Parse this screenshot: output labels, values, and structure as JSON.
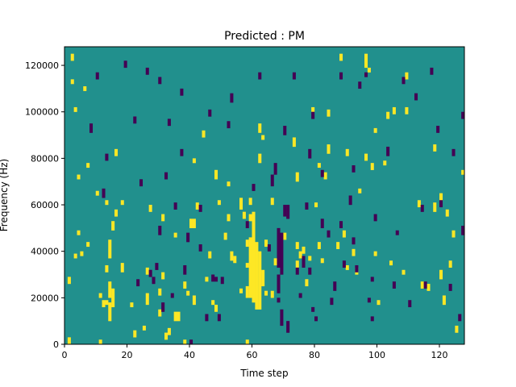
{
  "chart_data": {
    "type": "heatmap",
    "title": "Predicted : PM",
    "xlabel": "Time step",
    "ylabel": "Frequency (Hz)",
    "xlim": [
      0,
      128
    ],
    "ylim": [
      0,
      128000
    ],
    "x_ticks": [
      0,
      20,
      40,
      60,
      80,
      100,
      120
    ],
    "y_ticks": [
      0,
      20000,
      40000,
      60000,
      80000,
      100000,
      120000
    ],
    "n_time_steps": 128,
    "n_freq_bins": 128,
    "colors": {
      "background": "#21908d",
      "high": "#fde725",
      "low": "#440154"
    },
    "high_segments": [
      [
        1,
        0,
        3
      ],
      [
        1,
        26,
        29
      ],
      [
        2,
        112,
        114
      ],
      [
        2,
        122,
        125
      ],
      [
        3,
        37,
        39
      ],
      [
        3,
        100,
        102
      ],
      [
        4,
        47,
        49
      ],
      [
        4,
        71,
        73
      ],
      [
        5,
        38,
        40
      ],
      [
        6,
        109,
        111
      ],
      [
        7,
        42,
        44
      ],
      [
        7,
        76,
        78
      ],
      [
        10,
        64,
        66
      ],
      [
        11,
        0,
        2
      ],
      [
        11,
        20,
        22
      ],
      [
        12,
        16,
        19
      ],
      [
        13,
        17,
        19
      ],
      [
        13,
        31,
        34
      ],
      [
        13,
        60,
        62
      ],
      [
        14,
        10,
        18
      ],
      [
        14,
        20,
        27
      ],
      [
        14,
        37,
        45
      ],
      [
        15,
        16,
        24
      ],
      [
        15,
        49,
        53
      ],
      [
        16,
        55,
        58
      ],
      [
        16,
        81,
        84
      ],
      [
        18,
        31,
        35
      ],
      [
        18,
        60,
        62
      ],
      [
        21,
        16,
        18
      ],
      [
        22,
        3,
        6
      ],
      [
        25,
        6,
        8
      ],
      [
        26,
        17,
        22
      ],
      [
        26,
        30,
        33
      ],
      [
        27,
        57,
        60
      ],
      [
        30,
        12,
        15
      ],
      [
        30,
        21,
        24
      ],
      [
        31,
        28,
        31
      ],
      [
        31,
        53,
        56
      ],
      [
        32,
        2,
        5
      ],
      [
        33,
        4,
        7
      ],
      [
        35,
        10,
        14
      ],
      [
        35,
        46,
        48
      ],
      [
        36,
        10,
        14
      ],
      [
        38,
        0,
        2
      ],
      [
        38,
        24,
        27
      ],
      [
        39,
        21,
        23
      ],
      [
        40,
        50,
        54
      ],
      [
        41,
        50,
        54
      ],
      [
        41,
        17,
        21
      ],
      [
        41,
        78,
        80
      ],
      [
        42,
        58,
        61
      ],
      [
        44,
        89,
        92
      ],
      [
        45,
        27,
        29
      ],
      [
        46,
        37,
        40
      ],
      [
        47,
        17,
        19
      ],
      [
        48,
        14,
        17
      ],
      [
        48,
        71,
        75
      ],
      [
        49,
        60,
        62
      ],
      [
        51,
        45,
        48
      ],
      [
        52,
        53,
        56
      ],
      [
        52,
        68,
        70
      ],
      [
        53,
        36,
        40
      ],
      [
        54,
        35,
        38
      ],
      [
        56,
        58,
        63
      ],
      [
        56,
        22,
        24
      ],
      [
        57,
        54,
        57
      ],
      [
        58,
        0,
        2
      ],
      [
        58,
        20,
        25
      ],
      [
        58,
        33,
        35
      ],
      [
        58,
        42,
        45
      ],
      [
        59,
        20,
        46
      ],
      [
        59,
        53,
        56
      ],
      [
        59,
        60,
        63
      ],
      [
        60,
        18,
        57
      ],
      [
        61,
        15,
        44
      ],
      [
        62,
        15,
        40
      ],
      [
        62,
        78,
        82
      ],
      [
        62,
        91,
        95
      ],
      [
        63,
        25,
        32
      ],
      [
        63,
        88,
        90
      ],
      [
        64,
        21,
        23
      ],
      [
        64,
        42,
        45
      ],
      [
        66,
        20,
        23
      ],
      [
        66,
        60,
        63
      ],
      [
        67,
        34,
        37
      ],
      [
        70,
        45,
        48
      ],
      [
        73,
        85,
        89
      ],
      [
        74,
        33,
        36
      ],
      [
        74,
        41,
        44
      ],
      [
        74,
        70,
        74
      ],
      [
        75,
        37,
        40
      ],
      [
        76,
        39,
        42
      ],
      [
        77,
        25,
        28
      ],
      [
        78,
        36,
        38
      ],
      [
        79,
        100,
        102
      ],
      [
        80,
        59,
        61
      ],
      [
        81,
        41,
        44
      ],
      [
        81,
        76,
        78
      ],
      [
        82,
        35,
        37
      ],
      [
        83,
        71,
        74
      ],
      [
        84,
        82,
        86
      ],
      [
        84,
        98,
        101
      ],
      [
        87,
        41,
        44
      ],
      [
        89,
        46,
        49
      ],
      [
        90,
        32,
        34
      ],
      [
        90,
        81,
        84
      ],
      [
        92,
        38,
        41
      ],
      [
        93,
        30,
        33
      ],
      [
        94,
        65,
        67
      ],
      [
        96,
        79,
        82
      ],
      [
        98,
        75,
        78
      ],
      [
        99,
        38,
        40
      ],
      [
        99,
        91,
        93
      ],
      [
        100,
        17,
        19
      ],
      [
        102,
        77,
        79
      ],
      [
        103,
        97,
        100
      ],
      [
        104,
        34,
        36
      ],
      [
        108,
        30,
        32
      ],
      [
        109,
        114,
        117
      ],
      [
        109,
        99,
        102
      ],
      [
        113,
        59,
        62
      ],
      [
        116,
        23,
        26
      ],
      [
        118,
        57,
        61
      ],
      [
        120,
        28,
        32
      ],
      [
        120,
        62,
        65
      ],
      [
        121,
        17,
        21
      ],
      [
        122,
        55,
        58
      ],
      [
        123,
        33,
        36
      ],
      [
        124,
        46,
        49
      ],
      [
        125,
        5,
        8
      ],
      [
        127,
        73,
        75
      ],
      [
        88,
        122,
        125
      ],
      [
        96,
        119,
        125
      ],
      [
        97,
        117,
        119
      ],
      [
        105,
        99,
        102
      ],
      [
        114,
        24,
        27
      ],
      [
        118,
        83,
        86
      ]
    ],
    "low_segments": [
      [
        8,
        91,
        95
      ],
      [
        10,
        114,
        117
      ],
      [
        12,
        63,
        67
      ],
      [
        13,
        79,
        82
      ],
      [
        19,
        119,
        122
      ],
      [
        22,
        95,
        98
      ],
      [
        23,
        25,
        28
      ],
      [
        24,
        68,
        71
      ],
      [
        26,
        116,
        119
      ],
      [
        27,
        29,
        32
      ],
      [
        28,
        26,
        29
      ],
      [
        29,
        32,
        35
      ],
      [
        30,
        112,
        115
      ],
      [
        30,
        47,
        51
      ],
      [
        31,
        14,
        18
      ],
      [
        32,
        71,
        74
      ],
      [
        33,
        94,
        97
      ],
      [
        34,
        20,
        22
      ],
      [
        35,
        58,
        61
      ],
      [
        37,
        81,
        84
      ],
      [
        37,
        107,
        110
      ],
      [
        38,
        30,
        34
      ],
      [
        39,
        44,
        48
      ],
      [
        40,
        0,
        2
      ],
      [
        43,
        40,
        43
      ],
      [
        43,
        57,
        60
      ],
      [
        45,
        10,
        13
      ],
      [
        46,
        98,
        101
      ],
      [
        47,
        27,
        30
      ],
      [
        48,
        27,
        29
      ],
      [
        49,
        10,
        13
      ],
      [
        50,
        26,
        29
      ],
      [
        52,
        93,
        96
      ],
      [
        53,
        104,
        108
      ],
      [
        58,
        50,
        53
      ],
      [
        60,
        66,
        69
      ],
      [
        62,
        114,
        117
      ],
      [
        67,
        73,
        78
      ],
      [
        68,
        18,
        20
      ],
      [
        68,
        22,
        30
      ],
      [
        68,
        33,
        50
      ],
      [
        69,
        30,
        48
      ],
      [
        69,
        8,
        15
      ],
      [
        70,
        55,
        60
      ],
      [
        70,
        90,
        94
      ],
      [
        71,
        5,
        10
      ],
      [
        71,
        54,
        60
      ],
      [
        73,
        114,
        117
      ],
      [
        74,
        30,
        33
      ],
      [
        75,
        20,
        22
      ],
      [
        76,
        33,
        38
      ],
      [
        77,
        58,
        61
      ],
      [
        78,
        30,
        33
      ],
      [
        78,
        80,
        84
      ],
      [
        79,
        14,
        16
      ],
      [
        80,
        10,
        12
      ],
      [
        82,
        72,
        75
      ],
      [
        82,
        50,
        54
      ],
      [
        84,
        46,
        49
      ],
      [
        85,
        17,
        20
      ],
      [
        86,
        23,
        27
      ],
      [
        88,
        50,
        53
      ],
      [
        88,
        114,
        117
      ],
      [
        89,
        33,
        36
      ],
      [
        91,
        60,
        64
      ],
      [
        92,
        43,
        46
      ],
      [
        92,
        74,
        77
      ],
      [
        93,
        31,
        34
      ],
      [
        94,
        110,
        113
      ],
      [
        96,
        115,
        117
      ],
      [
        97,
        18,
        20
      ],
      [
        98,
        27,
        29
      ],
      [
        99,
        53,
        56
      ],
      [
        103,
        81,
        85
      ],
      [
        105,
        24,
        27
      ],
      [
        106,
        47,
        49
      ],
      [
        108,
        112,
        115
      ],
      [
        110,
        16,
        19
      ],
      [
        112,
        105,
        108
      ],
      [
        114,
        57,
        60
      ],
      [
        115,
        24,
        27
      ],
      [
        117,
        116,
        119
      ],
      [
        119,
        91,
        94
      ],
      [
        120,
        59,
        62
      ],
      [
        123,
        23,
        26
      ],
      [
        124,
        81,
        84
      ],
      [
        126,
        10,
        13
      ],
      [
        127,
        47,
        51
      ],
      [
        127,
        97,
        100
      ],
      [
        65,
        40,
        43
      ],
      [
        66,
        68,
        73
      ],
      [
        79,
        97,
        100
      ],
      [
        98,
        10,
        12
      ]
    ]
  }
}
